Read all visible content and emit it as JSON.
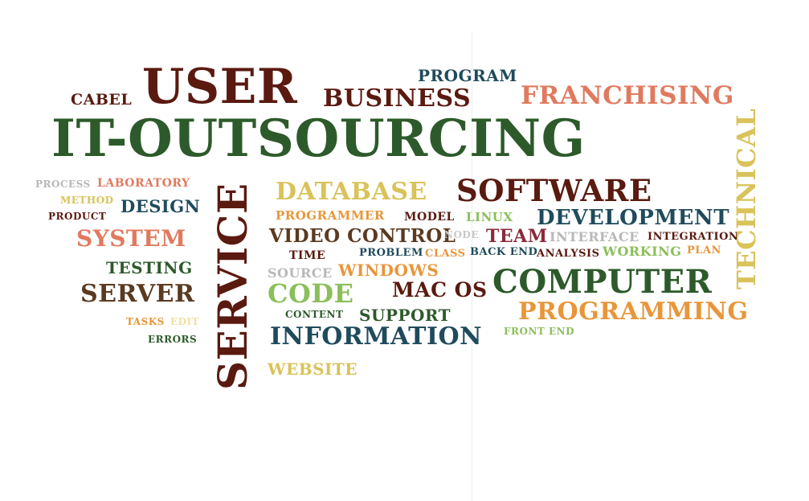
{
  "words": [
    {
      "text": "USER",
      "color": "#5a1a10"
    },
    {
      "text": "CABEL",
      "color": "#5a1a10"
    },
    {
      "text": "BUSINESS",
      "color": "#5a1a10"
    },
    {
      "text": "PROGRAM",
      "color": "#1f4b5c"
    },
    {
      "text": "FRANCHISING",
      "color": "#e07a5f"
    },
    {
      "text": "IT-OUTSOURCING",
      "color": "#2d5a2a"
    },
    {
      "text": "TECHNICAL",
      "color": "#d9c35a"
    },
    {
      "text": "PROCESS",
      "color": "#b8b8b8"
    },
    {
      "text": "LABORATORY",
      "color": "#e07a5f"
    },
    {
      "text": "METHOD",
      "color": "#d9c35a"
    },
    {
      "text": "DESIGN",
      "color": "#1f4b5c"
    },
    {
      "text": "PRODUCT",
      "color": "#5a1a10"
    },
    {
      "text": "SYSTEM",
      "color": "#e07a5f"
    },
    {
      "text": "TESTING",
      "color": "#2d5a2a"
    },
    {
      "text": "SERVER",
      "color": "#5a3a20"
    },
    {
      "text": "TASKS",
      "color": "#e8963a"
    },
    {
      "text": "EDIT",
      "color": "#f0e0a0"
    },
    {
      "text": "ERRORS",
      "color": "#2d5a2a"
    },
    {
      "text": "SERVICE",
      "color": "#5a1a10"
    },
    {
      "text": "DATABASE",
      "color": "#d9c35a"
    },
    {
      "text": "SOFTWARE",
      "color": "#5a1a10"
    },
    {
      "text": "PROGRAMMER",
      "color": "#e8963a"
    },
    {
      "text": "MODEL",
      "color": "#5a1a10"
    },
    {
      "text": "LINUX",
      "color": "#8bbf5a"
    },
    {
      "text": "DEVELOPMENT",
      "color": "#1f4b5c"
    },
    {
      "text": "VIDEO CONTROL",
      "color": "#5a3a20"
    },
    {
      "text": "NODE",
      "color": "#c8c8c8"
    },
    {
      "text": "TEAM",
      "color": "#8a2b3a"
    },
    {
      "text": "INTERFACE",
      "color": "#b8b8b8"
    },
    {
      "text": "INTEGRATION",
      "color": "#5a1a10"
    },
    {
      "text": "TIME",
      "color": "#5a1a10"
    },
    {
      "text": "PROBLEM",
      "color": "#1f4b5c"
    },
    {
      "text": "CLASS",
      "color": "#e8963a"
    },
    {
      "text": "BACK END",
      "color": "#1f4b5c"
    },
    {
      "text": "ANALYSIS",
      "color": "#5a1a10"
    },
    {
      "text": "WORKING",
      "color": "#8bbf5a"
    },
    {
      "text": "PLAN",
      "color": "#e8963a"
    },
    {
      "text": "SOURCE",
      "color": "#b8b8b8"
    },
    {
      "text": "WINDOWS",
      "color": "#e8963a"
    },
    {
      "text": "CODE",
      "color": "#8bbf5a"
    },
    {
      "text": "MAC OS",
      "color": "#5a1a10"
    },
    {
      "text": "COMPUTER",
      "color": "#2d5a2a"
    },
    {
      "text": "CONTENT",
      "color": "#2d5a2a"
    },
    {
      "text": "SUPPORT",
      "color": "#2d5a2a"
    },
    {
      "text": "PROGRAMMING",
      "color": "#e8963a"
    },
    {
      "text": "INFORMATION",
      "color": "#1f4b5c"
    },
    {
      "text": "FRONT END",
      "color": "#8bbf5a"
    },
    {
      "text": "WEBSITE",
      "color": "#d9c35a"
    }
  ]
}
